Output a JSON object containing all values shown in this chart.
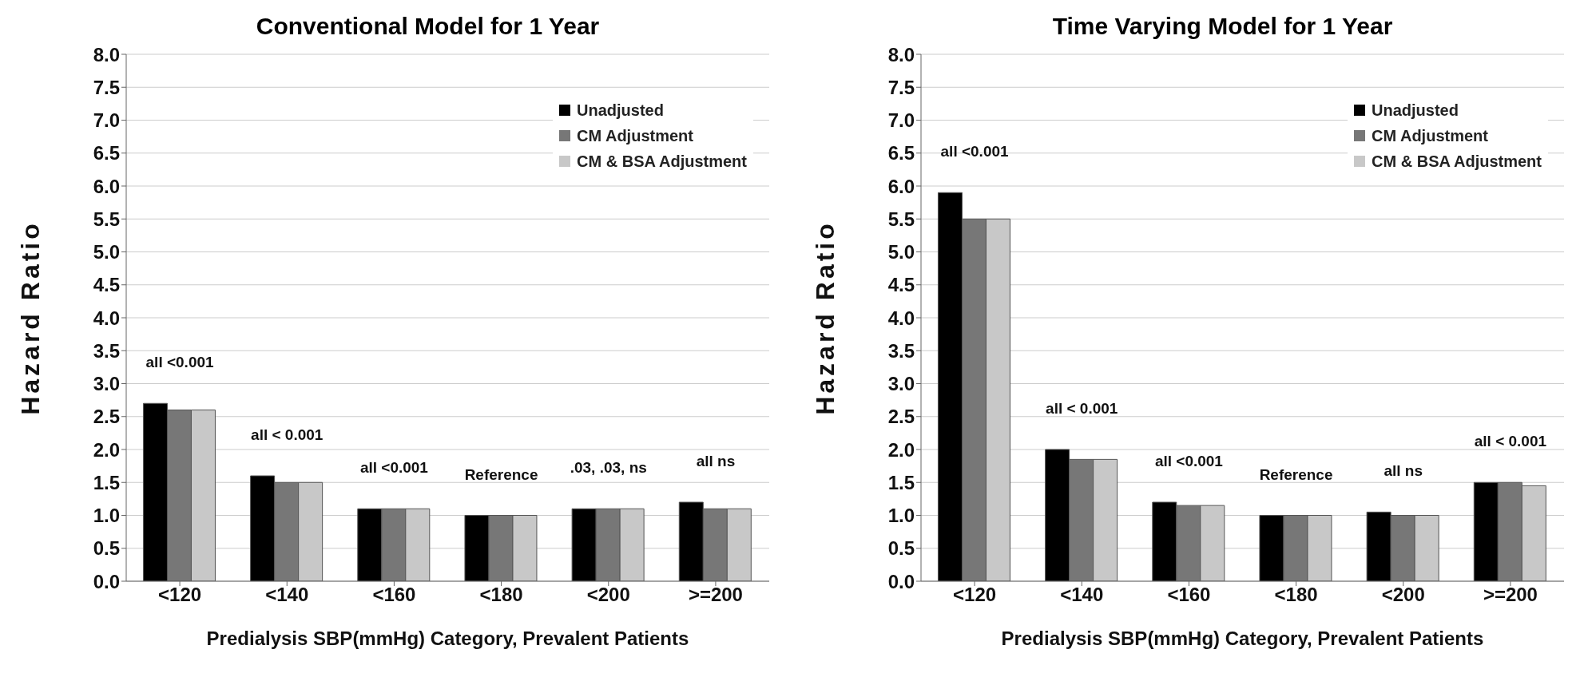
{
  "chart_data": [
    {
      "type": "bar",
      "title": "Conventional Model for 1 Year",
      "xlabel": "Predialysis SBP(mmHg) Category, Prevalent Patients",
      "ylabel": "Hazard Ratio",
      "categories": [
        "<120",
        "<140",
        "<160",
        "<180",
        "<200",
        ">=200"
      ],
      "series": [
        {
          "name": "Unadjusted",
          "color": "#000000",
          "values": [
            2.7,
            1.6,
            1.1,
            1.0,
            1.1,
            1.2
          ]
        },
        {
          "name": "CM Adjustment",
          "color": "#777777",
          "values": [
            2.6,
            1.5,
            1.1,
            1.0,
            1.1,
            1.1
          ]
        },
        {
          "name": "CM & BSA Adjustment",
          "color": "#c8c8c8",
          "values": [
            2.6,
            1.5,
            1.1,
            1.0,
            1.1,
            1.1
          ]
        }
      ],
      "annotations": [
        "all <0.001",
        "all < 0.001",
        "all <0.001",
        "Reference",
        ".03, .03, ns",
        "all ns"
      ],
      "ylim": [
        0,
        8
      ],
      "yticks": [
        {
          "value": 0,
          "label": "0.0"
        },
        {
          "value": 0.5,
          "label": "0.5"
        },
        {
          "value": 1,
          "label": "1.0"
        },
        {
          "value": 1.5,
          "label": "1.5"
        },
        {
          "value": 2,
          "label": "2.0"
        },
        {
          "value": 2.5,
          "label": "2.5"
        },
        {
          "value": 3,
          "label": "3.0"
        },
        {
          "value": 3.5,
          "label": "3.5"
        },
        {
          "value": 4,
          "label": "4.0"
        },
        {
          "value": 4.5,
          "label": "4.5"
        },
        {
          "value": 5,
          "label": "5.0"
        },
        {
          "value": 5.5,
          "label": "5.5"
        },
        {
          "value": 6,
          "label": "6.0"
        },
        {
          "value": 6.5,
          "label": "6.5"
        },
        {
          "value": 7,
          "label": "7.0"
        },
        {
          "value": 7.5,
          "label": "7.5"
        },
        {
          "value": 8,
          "label": "8.0"
        }
      ],
      "grid": "y",
      "legend": "top right"
    },
    {
      "type": "bar",
      "title": "Time Varying Model for 1 Year",
      "xlabel": "Predialysis SBP(mmHg) Category, Prevalent Patients",
      "ylabel": "Hazard Ratio",
      "categories": [
        "<120",
        "<140",
        "<160",
        "<180",
        "<200",
        ">=200"
      ],
      "series": [
        {
          "name": "Unadjusted",
          "color": "#000000",
          "values": [
            5.9,
            2.0,
            1.2,
            1.0,
            1.05,
            1.5
          ]
        },
        {
          "name": "CM Adjustment",
          "color": "#777777",
          "values": [
            5.5,
            1.85,
            1.15,
            1.0,
            1.0,
            1.5
          ]
        },
        {
          "name": "CM & BSA Adjustment",
          "color": "#c8c8c8",
          "values": [
            5.5,
            1.85,
            1.15,
            1.0,
            1.0,
            1.45
          ]
        }
      ],
      "annotations": [
        "all <0.001",
        "all < 0.001",
        "all <0.001",
        "Reference",
        "all ns",
        "all < 0.001"
      ],
      "ylim": [
        0,
        8
      ],
      "yticks": [
        {
          "value": 0,
          "label": "0.0"
        },
        {
          "value": 0.5,
          "label": "0.5"
        },
        {
          "value": 1,
          "label": "1.0"
        },
        {
          "value": 1.5,
          "label": "1.5"
        },
        {
          "value": 2,
          "label": "2.0"
        },
        {
          "value": 2.5,
          "label": "2.5"
        },
        {
          "value": 3,
          "label": "3.0"
        },
        {
          "value": 3.5,
          "label": "3.5"
        },
        {
          "value": 4,
          "label": "4.0"
        },
        {
          "value": 4.5,
          "label": "4.5"
        },
        {
          "value": 5,
          "label": "5.0"
        },
        {
          "value": 5.5,
          "label": "5.5"
        },
        {
          "value": 6,
          "label": "6.0"
        },
        {
          "value": 6.5,
          "label": "6.5"
        },
        {
          "value": 7,
          "label": "7.0"
        },
        {
          "value": 7.5,
          "label": "7.5"
        },
        {
          "value": 8,
          "label": "8.0"
        }
      ],
      "grid": "y",
      "legend": "top right"
    }
  ]
}
